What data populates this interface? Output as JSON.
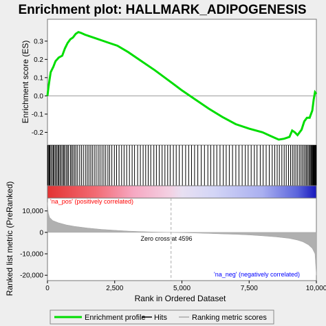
{
  "chart_data": {
    "type": "line",
    "title": "Enrichment plot: HALLMARK_ADIPOGENESIS",
    "xlabel": "Rank in Ordered Dataset",
    "x_ticks": [
      "0",
      "2,500",
      "5,000",
      "7,500",
      "10,000"
    ],
    "xlim": [
      0,
      10000
    ],
    "es_panel": {
      "ylabel": "Enrichment score (ES)",
      "ylim": [
        -0.27,
        0.42
      ],
      "y_ticks": [
        "0.3",
        "0.2",
        "0.1",
        "0.0",
        "-0.1",
        "-0.2"
      ],
      "y_tick_values": [
        0.3,
        0.2,
        0.1,
        0.0,
        -0.1,
        -0.2
      ],
      "color": "#00dd00",
      "points": [
        [
          0,
          0.0
        ],
        [
          30,
          0.04
        ],
        [
          70,
          0.08
        ],
        [
          120,
          0.13
        ],
        [
          220,
          0.16
        ],
        [
          300,
          0.19
        ],
        [
          420,
          0.21
        ],
        [
          550,
          0.22
        ],
        [
          650,
          0.26
        ],
        [
          750,
          0.29
        ],
        [
          850,
          0.31
        ],
        [
          950,
          0.32
        ],
        [
          1050,
          0.34
        ],
        [
          1150,
          0.35
        ],
        [
          1250,
          0.345
        ],
        [
          1400,
          0.335
        ],
        [
          1600,
          0.325
        ],
        [
          1800,
          0.315
        ],
        [
          2000,
          0.305
        ],
        [
          2300,
          0.29
        ],
        [
          2600,
          0.275
        ],
        [
          3000,
          0.24
        ],
        [
          3500,
          0.19
        ],
        [
          4000,
          0.14
        ],
        [
          4500,
          0.085
        ],
        [
          5000,
          0.03
        ],
        [
          5500,
          -0.02
        ],
        [
          6000,
          -0.07
        ],
        [
          6500,
          -0.115
        ],
        [
          7000,
          -0.155
        ],
        [
          7500,
          -0.18
        ],
        [
          8000,
          -0.2
        ],
        [
          8300,
          -0.22
        ],
        [
          8600,
          -0.24
        ],
        [
          8800,
          -0.235
        ],
        [
          9000,
          -0.225
        ],
        [
          9100,
          -0.19
        ],
        [
          9200,
          -0.2
        ],
        [
          9300,
          -0.215
        ],
        [
          9450,
          -0.185
        ],
        [
          9550,
          -0.14
        ],
        [
          9650,
          -0.12
        ],
        [
          9750,
          -0.12
        ],
        [
          9850,
          -0.08
        ],
        [
          9900,
          -0.02
        ],
        [
          9950,
          0.02
        ],
        [
          10000,
          0.01
        ]
      ]
    },
    "hits": [
      5,
      28,
      61,
      89,
      131,
      176,
      218,
      254,
      299,
      339,
      386,
      422,
      468,
      512,
      563,
      606,
      641,
      698,
      747,
      788,
      856,
      902,
      948,
      1004,
      1058,
      1121,
      1196,
      1263,
      1334,
      1412,
      1479,
      1543,
      1608,
      1671,
      1742,
      1812,
      1887,
      1954,
      2029,
      2097,
      2167,
      2248,
      2312,
      2394,
      2489,
      2571,
      2663,
      2758,
      2849,
      2947,
      3049,
      3148,
      3239,
      3354,
      3456,
      3557,
      3652,
      3748,
      3841,
      3956,
      4052,
      4158,
      4263,
      4369,
      4471,
      4563,
      4683,
      4789,
      4902,
      5019,
      5138,
      5251,
      5359,
      5471,
      5592,
      5719,
      5838,
      5964,
      6072,
      6186,
      6296,
      6418,
      6537,
      6648,
      6761,
      6883,
      7006,
      7121,
      7241,
      7359,
      7462,
      7576,
      7692,
      7794,
      7913,
      8021,
      8134,
      8248,
      8357,
      8452,
      8541,
      8625,
      8717,
      8803,
      8881,
      8963,
      9041,
      9109,
      9173,
      9237,
      9303,
      9368,
      9427,
      9482,
      9536,
      9586,
      9631,
      9675,
      9719,
      9758,
      9793,
      9821,
      9849,
      9874,
      9898,
      9917,
      9934,
      9952,
      9967,
      9981,
      9994
    ],
    "ranked_panel": {
      "ylabel": "Ranked list metric (PreRanked)",
      "ylim": [
        -22500,
        16000
      ],
      "y_ticks": [
        "10,000",
        "0",
        "-10,000",
        "-20,000"
      ],
      "y_tick_values": [
        10000,
        0,
        -10000,
        -20000
      ],
      "zero_cross": 4596,
      "zero_cross_label": "Zero cross at 4596",
      "pos_label": "'na_pos' (positively correlated)",
      "neg_label": "'na_neg' (negatively correlated)",
      "pos_color": "#ff0000",
      "neg_color": "#0000ff",
      "fill_color": "#b0b0b0",
      "profile": [
        [
          0,
          14000
        ],
        [
          30,
          9000
        ],
        [
          80,
          7000
        ],
        [
          200,
          5500
        ],
        [
          400,
          4500
        ],
        [
          700,
          3500
        ],
        [
          1000,
          2800
        ],
        [
          1500,
          2000
        ],
        [
          2000,
          1400
        ],
        [
          2500,
          1000
        ],
        [
          3000,
          600
        ],
        [
          3500,
          350
        ],
        [
          4000,
          150
        ],
        [
          4596,
          0
        ],
        [
          5000,
          -150
        ],
        [
          5500,
          -300
        ],
        [
          6000,
          -500
        ],
        [
          6500,
          -700
        ],
        [
          7000,
          -900
        ],
        [
          7500,
          -1200
        ],
        [
          8000,
          -1600
        ],
        [
          8500,
          -2100
        ],
        [
          9000,
          -2800
        ],
        [
          9300,
          -3600
        ],
        [
          9500,
          -4400
        ],
        [
          9700,
          -5800
        ],
        [
          9850,
          -7500
        ],
        [
          9950,
          -10000
        ],
        [
          10000,
          -20000
        ]
      ]
    },
    "legend": [
      "Enrichment profile",
      "Hits",
      "Ranking metric scores"
    ],
    "legend_position": "bottom"
  }
}
